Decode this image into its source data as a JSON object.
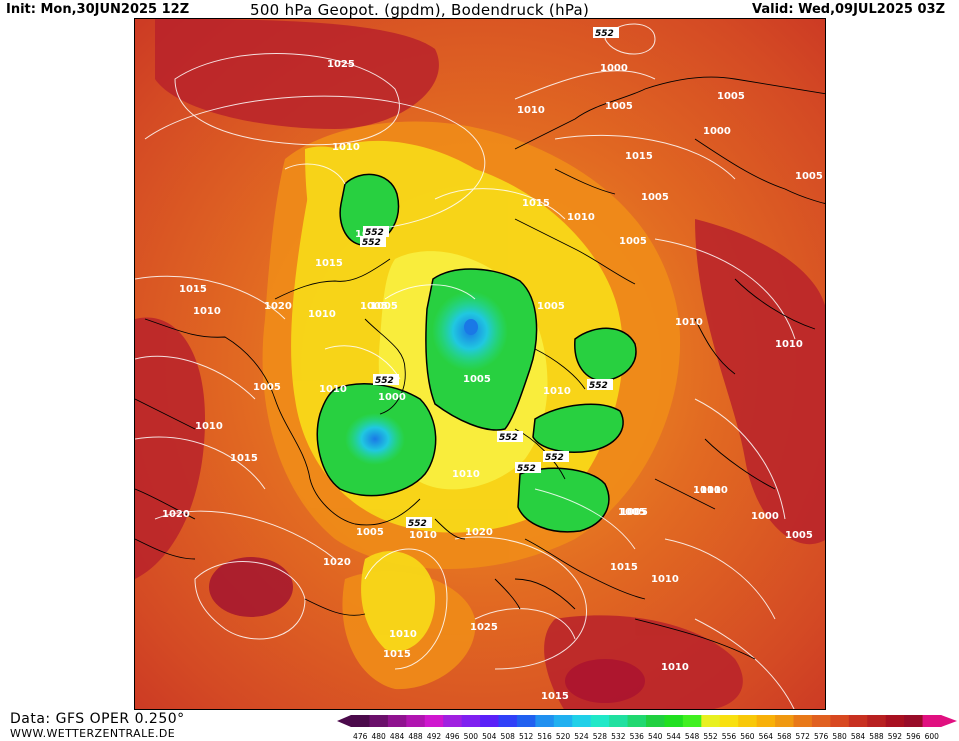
{
  "header": {
    "init": "Init: Mon,30JUN2025 12Z",
    "title": "500 hPa Geopot. (gpdm), Bodendruck (hPa)",
    "valid": "Valid: Wed,09JUL2025 03Z"
  },
  "footer": {
    "data_source": "Data: GFS OPER 0.250°",
    "website": "WWW.WETTERZENTRALE.DE"
  },
  "map_labels": {
    "pressure": [
      "1025",
      "1010",
      "1000",
      "1005",
      "1010",
      "1000",
      "1005",
      "1015",
      "1010",
      "1005",
      "1005",
      "1015",
      "1015",
      "1020",
      "1010",
      "1005",
      "1010",
      "1005",
      "1005",
      "1010",
      "1010",
      "1000",
      "1005",
      "1010",
      "1015",
      "1010",
      "1020",
      "1020",
      "1010",
      "1005",
      "1005",
      "1010",
      "1000",
      "1005",
      "1010",
      "1005",
      "1015",
      "1010",
      "1025",
      "1010",
      "1015",
      "1015",
      "1010",
      "1015",
      "1005",
      "1010",
      "1020",
      "1005",
      "1010",
      "1005"
    ],
    "geopotential": [
      "552",
      "552",
      "552",
      "552",
      "552",
      "552",
      "552",
      "552",
      "552"
    ]
  },
  "colorscale": {
    "ticks": [
      "476",
      "480",
      "484",
      "488",
      "492",
      "496",
      "500",
      "504",
      "508",
      "512",
      "516",
      "520",
      "524",
      "528",
      "532",
      "536",
      "540",
      "544",
      "548",
      "552",
      "556",
      "560",
      "564",
      "568",
      "572",
      "576",
      "580",
      "584",
      "588",
      "592",
      "596",
      "600"
    ],
    "colors": [
      "#4b0a4b",
      "#6a0f6a",
      "#8f128f",
      "#b014b0",
      "#cf16cf",
      "#a020e0",
      "#7f20f0",
      "#5a20f8",
      "#3040f8",
      "#2060f0",
      "#2090f0",
      "#20b0f0",
      "#20d0e8",
      "#20e8c8",
      "#20e0a0",
      "#20d870",
      "#20d040",
      "#20e020",
      "#40f020",
      "#e8f020",
      "#f8e010",
      "#f8c808",
      "#f8b008",
      "#f09810",
      "#e87818",
      "#e06020",
      "#d84820",
      "#c83020",
      "#b82020",
      "#a81020",
      "#980c28",
      "#e01080"
    ]
  }
}
